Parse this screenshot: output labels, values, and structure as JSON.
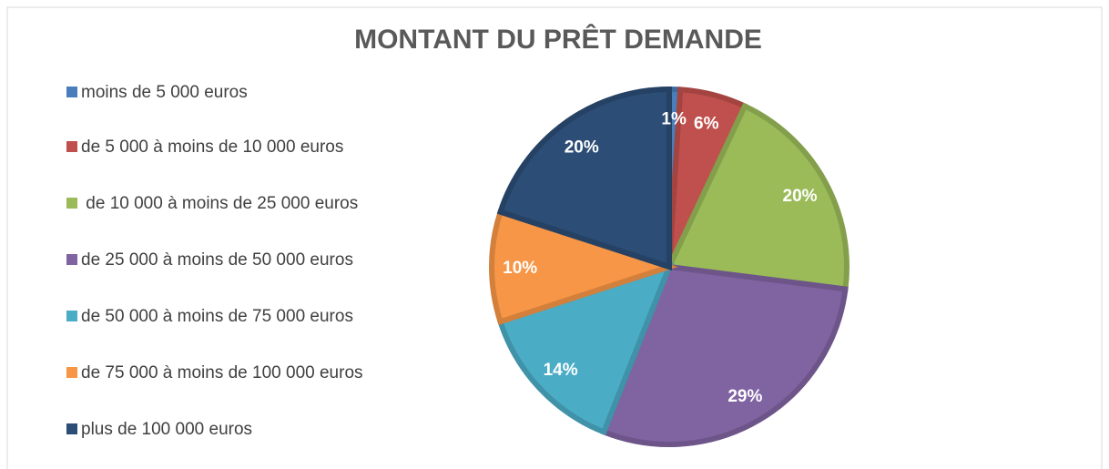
{
  "chart_data": {
    "type": "pie",
    "title": "MONTANT DU PRÊT DEMANDE",
    "categories": [
      "moins de 5 000 euros",
      "de 5 000 à moins de 10 000 euros",
      " de 10 000 à moins de 25 000 euros",
      "de 25 000 à moins de 50 000 euros",
      "de 50 000 à moins de 75 000 euros",
      "de 75 000 à moins de 100 000 euros",
      "plus de 100 000 euros"
    ],
    "values": [
      1,
      6,
      20,
      29,
      14,
      10,
      20
    ],
    "value_labels": [
      "1%",
      "6%",
      "20%",
      "29%",
      "14%",
      "10%",
      "20%"
    ],
    "colors": [
      "#4a7ebb",
      "#c0504d",
      "#9bbb59",
      "#8064a2",
      "#4bacc6",
      "#f79646",
      "#2c4d75"
    ],
    "legend": "left"
  }
}
